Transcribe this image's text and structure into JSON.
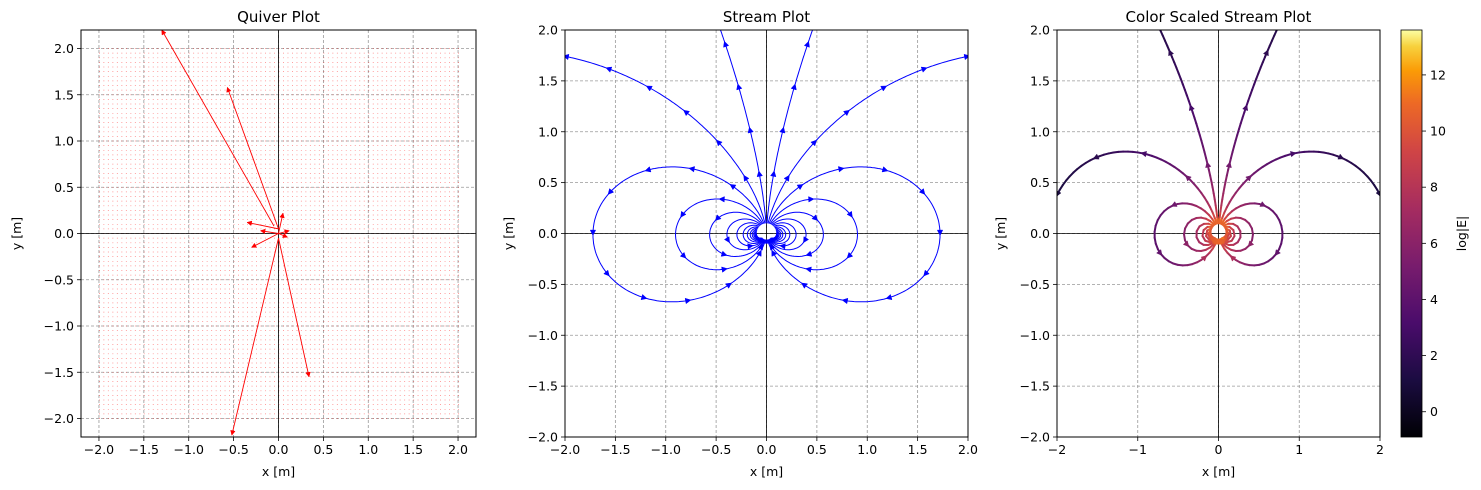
{
  "chart_data": [
    {
      "type": "quiver",
      "title": "Quiver Plot",
      "xlabel": "x [m]",
      "ylabel": "y [m]",
      "xlim": [
        -2.2,
        2.2
      ],
      "ylim": [
        -2.2,
        2.2
      ],
      "xticks": [
        "−2.0",
        "−1.5",
        "−1.0",
        "−0.5",
        "0.0",
        "0.5",
        "1.0",
        "1.5",
        "2.0"
      ],
      "yticks": [
        "−2.0",
        "−1.5",
        "−1.0",
        "−0.5",
        "0.0",
        "0.5",
        "1.0",
        "1.5",
        "2.0"
      ],
      "grid": true,
      "grid_range": [
        -2.0,
        2.0
      ],
      "arrow_color": "#ff0000",
      "large_arrows": [
        {
          "from": [
            -0.05,
            0.08
          ],
          "to": [
            -1.3,
            2.2
          ]
        },
        {
          "from": [
            0.0,
            0.05
          ],
          "to": [
            -0.57,
            1.58
          ]
        },
        {
          "from": [
            0.0,
            -0.05
          ],
          "to": [
            0.34,
            -1.55
          ]
        },
        {
          "from": [
            0.0,
            -0.05
          ],
          "to": [
            -0.52,
            -2.18
          ]
        },
        {
          "from": [
            0.0,
            0.05
          ],
          "to": [
            -0.35,
            0.12
          ]
        },
        {
          "from": [
            0.0,
            0.0
          ],
          "to": [
            -0.3,
            -0.15
          ]
        },
        {
          "from": [
            0.0,
            0.0
          ],
          "to": [
            -0.2,
            0.03
          ]
        },
        {
          "from": [
            0.0,
            0.0
          ],
          "to": [
            0.12,
            0.03
          ]
        },
        {
          "from": [
            0.0,
            0.0
          ],
          "to": [
            0.05,
            0.22
          ]
        },
        {
          "from": [
            0.0,
            0.0
          ],
          "to": [
            0.1,
            -0.04
          ]
        }
      ]
    },
    {
      "type": "stream",
      "title": "Stream Plot",
      "xlabel": "x [m]",
      "ylabel": "y [m]",
      "xlim": [
        -2.0,
        2.0
      ],
      "ylim": [
        -2.0,
        2.0
      ],
      "xticks": [
        "−2.0",
        "−1.5",
        "−1.0",
        "−0.5",
        "0.0",
        "0.5",
        "1.0",
        "1.5",
        "2.0"
      ],
      "yticks": [
        "−2.0",
        "−1.5",
        "−1.0",
        "−0.5",
        "0.0",
        "0.5",
        "1.0",
        "1.5",
        "2.0"
      ],
      "grid": true,
      "line_color": "#0000ff"
    },
    {
      "type": "stream",
      "title": "Color Scaled Stream Plot",
      "xlabel": "x [m]",
      "ylabel": "y [m]",
      "xlim": [
        -2,
        2
      ],
      "ylim": [
        -2,
        2
      ],
      "xticks": [
        "−2",
        "−1",
        "0",
        "1",
        "2"
      ],
      "yticks": [
        "−2.0",
        "−1.5",
        "−1.0",
        "−0.5",
        "0.0",
        "0.5",
        "1.0",
        "1.5",
        "2.0"
      ],
      "grid": true,
      "colormap": "inferno",
      "colorbar": {
        "label": "log|E|",
        "range": [
          -0.9,
          13.6
        ],
        "ticks": [
          "0",
          "2",
          "4",
          "6",
          "8",
          "10",
          "12"
        ]
      }
    }
  ]
}
